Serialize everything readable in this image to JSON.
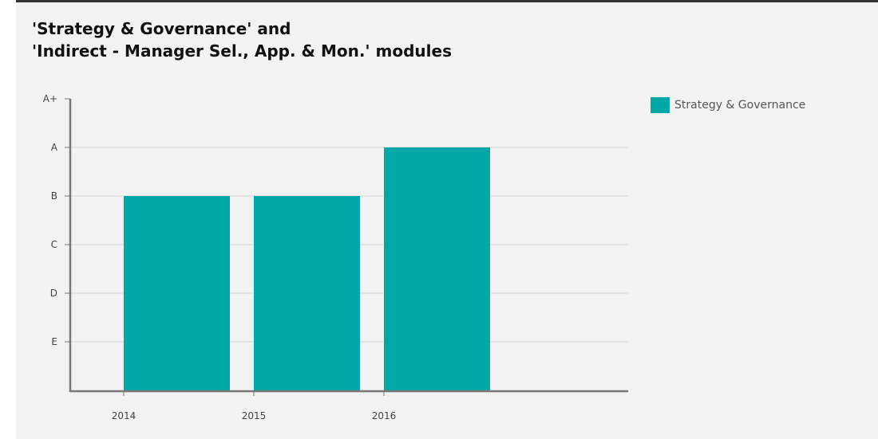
{
  "title": {
    "line1": "'Strategy & Governance' and",
    "line2": "'Indirect - Manager Sel., App. & Mon.' modules"
  },
  "colors": {
    "bar": "#00a8a8",
    "axis": "#777777",
    "grid": "#d6d6d6"
  },
  "chart_data": {
    "type": "bar",
    "categories": [
      "2014",
      "2015",
      "2016"
    ],
    "y_ticks": [
      "A+",
      "A",
      "B",
      "C",
      "D",
      "E"
    ],
    "series": [
      {
        "name": "Strategy & Governance",
        "values": [
          "B",
          "B",
          "A"
        ]
      }
    ],
    "legend_position": "top-right",
    "grid": true,
    "xlabel": "",
    "ylabel": ""
  }
}
